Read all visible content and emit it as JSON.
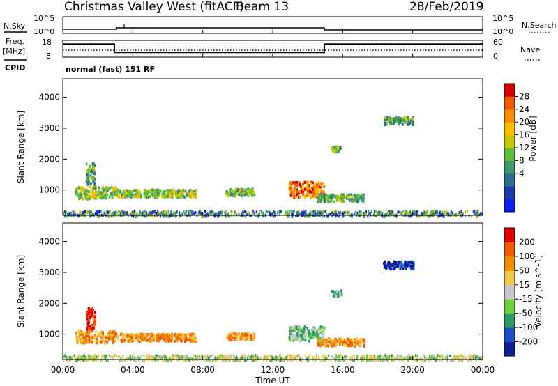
{
  "header": {
    "station": "Christmas Valley West (fitACF)",
    "beam": "Beam 13",
    "date": "28/Feb/2019"
  },
  "panels": {
    "sky": {
      "label": "N.Sky",
      "ticks": [
        "10^5",
        "10^0"
      ],
      "right_label": "N.Search",
      "right_ticks": [
        "10^5",
        "10^0"
      ]
    },
    "freq": {
      "label1": "Freq.",
      "label2": "[MHz]",
      "ticks": [
        "18",
        "8"
      ],
      "right_label": "Nave",
      "right_ticks": [
        "60",
        "0"
      ]
    },
    "cpid": {
      "label": "CPID",
      "text": "normal (fast) 151 RF"
    }
  },
  "chart_data": {
    "type": "heatmap",
    "xlabel": "Time UT",
    "x_ticks": [
      "00:00",
      "04:00",
      "08:00",
      "12:00",
      "16:00",
      "20:00",
      "00:00"
    ],
    "xlim": [
      0,
      24
    ],
    "ylabel": "Slant Range [km]",
    "ylim": [
      180,
      4600
    ],
    "y_ticks": [
      1000,
      2000,
      3000,
      4000
    ],
    "freq_steps": [
      {
        "t0": 0,
        "t1": 2.95,
        "mhz": 15.8
      },
      {
        "t0": 2.95,
        "t1": 14.95,
        "mhz": 10.8
      },
      {
        "t0": 14.95,
        "t1": 24,
        "mhz": 15.8
      }
    ],
    "power": {
      "colorbar_label": "Power [dB]",
      "ticks": [
        "28",
        "24",
        "20",
        "16",
        "12",
        "8",
        "4"
      ],
      "colors": [
        "#0a1ff0",
        "#1a3aa8",
        "#2d6f8e",
        "#3a9a6a",
        "#5fbf3a",
        "#c8c800",
        "#ffbf00",
        "#ff8c00",
        "#f05a00",
        "#d70000"
      ]
    },
    "velocity": {
      "colorbar_label": "Velocity [m s^-1]",
      "ticks": [
        "200",
        "100",
        "50",
        "15",
        "-15",
        "-50",
        "-100",
        "-200"
      ],
      "colors": [
        "#0a1e96",
        "#1e50c8",
        "#2a9a6a",
        "#6ccf3c",
        "#c8c8c8",
        "#f4c84a",
        "#f08c00",
        "#f05a00",
        "#e00000"
      ]
    },
    "echo_regions": [
      {
        "t0": 0.7,
        "t1": 3.0,
        "r0": 750,
        "r1": 1150
      },
      {
        "t0": 1.3,
        "t1": 1.8,
        "r0": 1200,
        "r1": 1900
      },
      {
        "t0": 3.0,
        "t1": 7.6,
        "r0": 800,
        "r1": 1050
      },
      {
        "t0": 9.3,
        "t1": 10.9,
        "r0": 850,
        "r1": 1080
      },
      {
        "t0": 12.9,
        "t1": 14.9,
        "r0": 800,
        "r1": 1300
      },
      {
        "t0": 14.5,
        "t1": 17.2,
        "r0": 650,
        "r1": 900
      },
      {
        "t0": 15.3,
        "t1": 15.9,
        "r0": 2250,
        "r1": 2450
      },
      {
        "t0": 18.3,
        "t1": 20.0,
        "r0": 3150,
        "r1": 3400
      }
    ]
  }
}
